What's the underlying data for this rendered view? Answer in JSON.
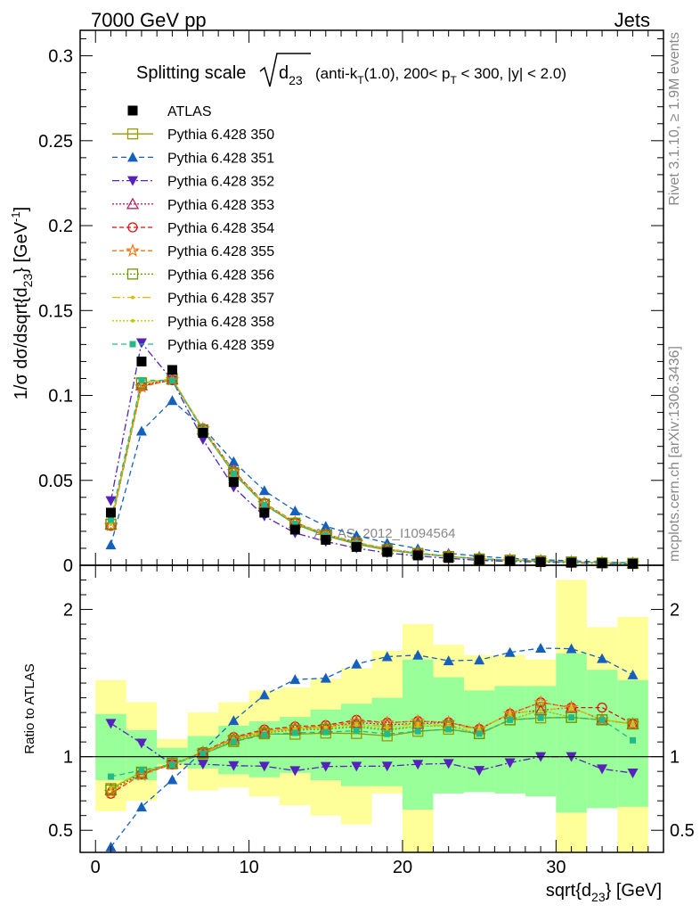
{
  "header": {
    "left": "7000 GeV pp",
    "right": "Jets"
  },
  "side_labels": {
    "top": "Rivet 3.1.10, ≥ 1.9M events",
    "bottom": "mcplots.cern.ch [arXiv:1306.3436]"
  },
  "watermark": "ATLAS_2012_I1094564",
  "chart_data": {
    "type": "scatter",
    "title": {
      "prefix": "Splitting scale",
      "sym": "d",
      "sub": "23",
      "rest_a": "(anti-k",
      "rest_sub_T": "T",
      "rest_b": "(1.0), 200< p",
      "rest_sub_T2": "T",
      "rest_c": " < 300, |y| < 2.0)"
    },
    "ylabel": {
      "a": "1/σ dσ/dsqrt{d",
      "sub": "23",
      "b": "} [GeV",
      "sup": "-1",
      "c": "]"
    },
    "xlabel": {
      "a": "sqrt{d",
      "sub": "23",
      "b": "} [GeV]"
    },
    "ratio_ylabel": "Ratio to ATLAS",
    "xlim": [
      -1,
      37
    ],
    "ylim": [
      0,
      0.315
    ],
    "ratio_ylim": [
      0.35,
      2.3
    ],
    "x_ticks": [
      0,
      10,
      20,
      30
    ],
    "x_tick_labels": [
      "0",
      "10",
      "20",
      "30"
    ],
    "y_ticks": [
      0,
      0.05,
      0.1,
      0.15,
      0.2,
      0.25,
      0.3
    ],
    "y_tick_labels": [
      "0",
      "0.05",
      "0.1",
      "0.15",
      "0.2",
      "0.25",
      "0.3"
    ],
    "ratio_y_ticks": [
      0.5,
      1,
      2
    ],
    "ratio_y_tick_labels": [
      "0.5",
      "1",
      "2"
    ],
    "x": [
      1,
      3,
      5,
      7,
      9,
      11,
      13,
      15,
      17,
      19,
      21,
      23,
      25,
      27,
      29,
      31,
      33,
      35
    ],
    "data": {
      "name": "ATLAS",
      "values": [
        0.031,
        0.12,
        0.115,
        0.078,
        0.049,
        0.031,
        0.021,
        0.015,
        0.0108,
        0.0078,
        0.0058,
        0.0043,
        0.0032,
        0.0024,
        0.0019,
        0.0015,
        0.0012,
        0.0009
      ]
    },
    "band_outer": {
      "lo": [
        0.63,
        0.7,
        0.92,
        0.77,
        0.79,
        0.73,
        0.67,
        0.6,
        0.54,
        0.75,
        0.2,
        0.79,
        0.82,
        0.82,
        0.81,
        0.2,
        0.72,
        0.2
      ],
      "hi": [
        1.52,
        1.37,
        1.12,
        1.3,
        1.37,
        1.45,
        1.47,
        1.53,
        1.6,
        1.72,
        1.9,
        1.76,
        1.69,
        1.69,
        1.66,
        2.2,
        1.88,
        1.95
      ]
    },
    "band_inner": {
      "lo": [
        0.84,
        0.84,
        0.95,
        0.92,
        0.88,
        0.86,
        0.89,
        0.84,
        0.8,
        0.8,
        0.64,
        0.75,
        0.76,
        0.75,
        0.73,
        0.62,
        0.65,
        0.66
      ],
      "hi": [
        1.29,
        1.18,
        1.06,
        1.14,
        1.21,
        1.24,
        1.27,
        1.32,
        1.36,
        1.4,
        1.66,
        1.54,
        1.45,
        1.48,
        1.48,
        1.7,
        1.59,
        1.52
      ]
    },
    "series": [
      {
        "name": "Pythia 6.428 350",
        "color": "#999900",
        "marker": "square-open",
        "dash": "",
        "values": [
          0.0243,
          0.1075,
          0.1095,
          0.0795,
          0.054,
          0.0358,
          0.0242,
          0.0174,
          0.0125,
          0.0089,
          0.0068,
          0.0051,
          0.0037,
          0.003,
          0.0024,
          0.0019,
          0.0015,
          0.0011
        ]
      },
      {
        "name": "Pythia 6.428 351",
        "color": "#1560bd",
        "marker": "triangle-up-filled",
        "dash": "6,4",
        "values": [
          0.012,
          0.079,
          0.097,
          0.081,
          0.061,
          0.044,
          0.032,
          0.023,
          0.0176,
          0.0131,
          0.0098,
          0.0071,
          0.0053,
          0.0041,
          0.0033,
          0.0026,
          0.002,
          0.0014
        ]
      },
      {
        "name": "Pythia 6.428 352",
        "color": "#5522bb",
        "marker": "triangle-down-filled",
        "dash": "8,3,2,3",
        "values": [
          0.038,
          0.131,
          0.109,
          0.074,
          0.046,
          0.029,
          0.019,
          0.014,
          0.0101,
          0.0073,
          0.0055,
          0.0041,
          0.0029,
          0.0023,
          0.0019,
          0.0015,
          0.0011,
          0.0008
        ]
      },
      {
        "name": "Pythia 6.428 353",
        "color": "#bb2266",
        "marker": "triangle-up-open",
        "dash": "2,2",
        "values": [
          0.024,
          0.106,
          0.1095,
          0.08,
          0.055,
          0.0362,
          0.025,
          0.018,
          0.0133,
          0.0095,
          0.0071,
          0.0053,
          0.0038,
          0.0031,
          0.0025,
          0.002,
          0.0015,
          0.0011
        ]
      },
      {
        "name": "Pythia 6.428 354",
        "color": "#dd1111",
        "marker": "circle-open",
        "dash": "5,3",
        "values": [
          0.0232,
          0.1055,
          0.109,
          0.0805,
          0.0555,
          0.0367,
          0.0253,
          0.0182,
          0.0135,
          0.0096,
          0.0072,
          0.0053,
          0.0038,
          0.0031,
          0.0026,
          0.002,
          0.0016,
          0.0011
        ]
      },
      {
        "name": "Pythia 6.428 355",
        "color": "#ee7711",
        "marker": "star-open",
        "dash": "5,3",
        "values": [
          0.0235,
          0.105,
          0.1092,
          0.0803,
          0.0552,
          0.0365,
          0.0252,
          0.0181,
          0.0134,
          0.0096,
          0.0072,
          0.0053,
          0.0038,
          0.0031,
          0.0026,
          0.002,
          0.0015,
          0.0011
        ]
      },
      {
        "name": "Pythia 6.428 356",
        "color": "#669900",
        "marker": "square-open",
        "dash": "2,2",
        "values": [
          0.024,
          0.107,
          0.11,
          0.0798,
          0.0545,
          0.036,
          0.0248,
          0.0178,
          0.013,
          0.0092,
          0.007,
          0.0052,
          0.0037,
          0.003,
          0.0025,
          0.0019,
          0.0015,
          0.0011
        ]
      },
      {
        "name": "Pythia 6.428 357",
        "color": "#ddbb00",
        "marker": "dot",
        "dash": "9,3,2,3",
        "values": [
          0.0245,
          0.1072,
          0.1098,
          0.0797,
          0.0548,
          0.0362,
          0.025,
          0.018,
          0.0132,
          0.0094,
          0.0071,
          0.0052,
          0.0038,
          0.0031,
          0.0025,
          0.002,
          0.0015,
          0.0011
        ]
      },
      {
        "name": "Pythia 6.428 358",
        "color": "#bbcc00",
        "marker": "dot",
        "dash": "2,2",
        "values": [
          0.0243,
          0.1073,
          0.1097,
          0.0796,
          0.0546,
          0.0361,
          0.0249,
          0.0179,
          0.0131,
          0.0093,
          0.007,
          0.0052,
          0.0037,
          0.003,
          0.0025,
          0.0019,
          0.0015,
          0.0011
        ]
      },
      {
        "name": "Pythia 6.428 359",
        "color": "#22bb88",
        "marker": "square-filled-small",
        "dash": "6,4",
        "values": [
          0.0268,
          0.109,
          0.1088,
          0.0795,
          0.054,
          0.0356,
          0.0244,
          0.0175,
          0.0127,
          0.009,
          0.0068,
          0.0051,
          0.0037,
          0.003,
          0.0024,
          0.0019,
          0.0015,
          0.001
        ]
      }
    ]
  }
}
